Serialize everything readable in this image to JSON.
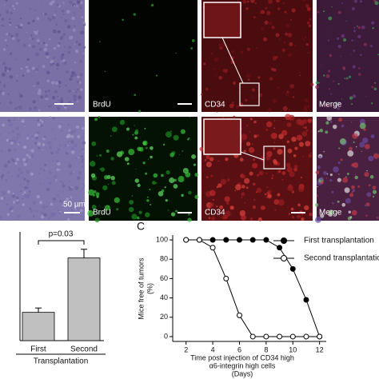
{
  "image_panels": {
    "labels": [
      "BrdU",
      "CD34",
      "Merge",
      "BrdU",
      "CD34",
      "Merge"
    ],
    "scale_bar": "50 µm"
  },
  "chart_data": [
    {
      "type": "bar",
      "categories": [
        "First",
        "Second"
      ],
      "values": [
        26,
        76
      ],
      "errors": [
        4,
        8
      ],
      "color": "#c0c0c0",
      "ylim": [
        0,
        100
      ],
      "annotation": "p=0.03",
      "x_label": "Transplantation"
    },
    {
      "type": "line",
      "panel_label": "C",
      "x": [
        2,
        3,
        4,
        5,
        6,
        7,
        8,
        9,
        10,
        11,
        12
      ],
      "series": [
        {
          "name": "First transplantation",
          "color": "#000000",
          "marker": "filled",
          "values": [
            100,
            100,
            100,
            100,
            100,
            100,
            100,
            92,
            70,
            38,
            0
          ]
        },
        {
          "name": "Second transplantation",
          "color": "#000000",
          "marker": "open",
          "values": [
            100,
            100,
            92,
            60,
            22,
            0,
            0,
            0,
            0,
            0,
            0
          ]
        }
      ],
      "xlim": [
        1,
        12.5
      ],
      "ylim": [
        -5,
        105
      ],
      "xticks": [
        2,
        4,
        6,
        8,
        10,
        12
      ],
      "yticks": [
        0,
        20,
        40,
        60,
        80,
        100
      ],
      "y_label": [
        "Mice free of tumors",
        "(%)"
      ],
      "x_label": [
        "Time post injection of CD34 high",
        "α6-integrin high cells",
        "(Days)"
      ]
    }
  ]
}
